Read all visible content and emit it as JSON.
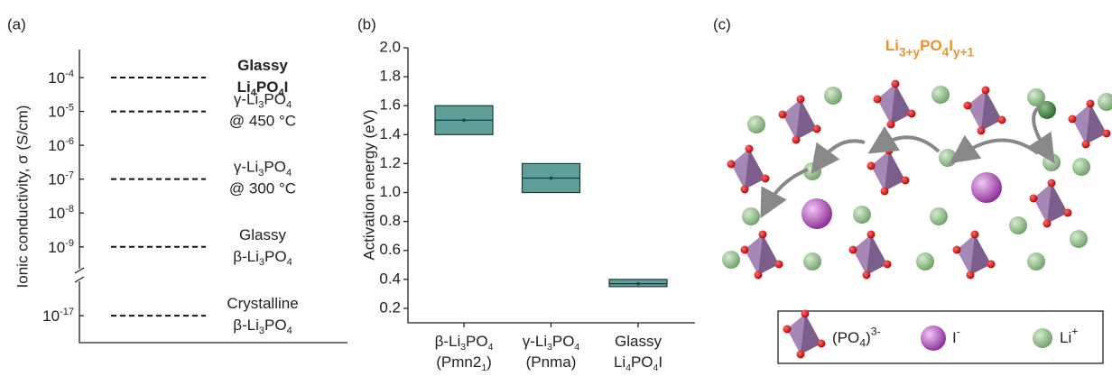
{
  "chart_data": [
    {
      "type": "levels",
      "panel_label": "(a)",
      "y_label": "Ionic conductivity, σ (S/cm)",
      "log_scale": true,
      "ylim": [
        1.8e-18,
        0.00067
      ],
      "axis_break": [
        1e-16,
        2e-10
      ],
      "yticks": [
        {
          "value": 0.0001,
          "label": "10-4"
        },
        {
          "value": 1e-05,
          "label": "10-5"
        },
        {
          "value": 1e-06,
          "label": "10-6"
        },
        {
          "value": 1e-07,
          "label": "10-7"
        },
        {
          "value": 1e-08,
          "label": "10-8"
        },
        {
          "value": 1e-09,
          "label": "10-9"
        },
        {
          "value": 1e-17,
          "label": "10-17"
        }
      ],
      "levels": [
        {
          "value": 0.0001,
          "bold": true,
          "label": [
            [
              "Glassy"
            ],
            [
              "Li",
              {
                "sub": "4"
              },
              "PO",
              {
                "sub": "4"
              },
              "I"
            ]
          ]
        },
        {
          "value": 1e-05,
          "label": [
            [
              "γ-Li",
              {
                "sub": "3"
              },
              "PO",
              {
                "sub": "4"
              }
            ],
            [
              "@ 450 °C"
            ]
          ]
        },
        {
          "value": 1e-07,
          "label": [
            [
              "γ-Li",
              {
                "sub": "3"
              },
              "PO",
              {
                "sub": "4"
              }
            ],
            [
              "@ 300 °C"
            ]
          ]
        },
        {
          "value": 1e-09,
          "label": [
            [
              "Glassy"
            ],
            [
              "β-Li",
              {
                "sub": "3"
              },
              "PO",
              {
                "sub": "4"
              }
            ]
          ]
        },
        {
          "value": 1e-17,
          "label": [
            [
              "Crystalline"
            ],
            [
              "β-Li",
              {
                "sub": "3"
              },
              "PO",
              {
                "sub": "4"
              }
            ]
          ]
        }
      ]
    },
    {
      "type": "box",
      "panel_label": "(b)",
      "y_label": "Activation energy (eV)",
      "color": "#5f9f9a",
      "ylim": [
        0.1,
        2.0
      ],
      "yticks": [
        {
          "value": 0.2,
          "label": "0.2"
        },
        {
          "value": 0.4,
          "label": "0.4"
        },
        {
          "value": 0.6,
          "label": "0.6"
        },
        {
          "value": 0.8,
          "label": "0.8"
        },
        {
          "value": 1.0,
          "label": "1.0"
        },
        {
          "value": 1.2,
          "label": "1.2"
        },
        {
          "value": 1.4,
          "label": "1.4"
        },
        {
          "value": 1.6,
          "label": "1.6"
        },
        {
          "value": 1.8,
          "label": "1.8"
        },
        {
          "value": 2.0,
          "label": "2.0"
        }
      ],
      "categories": [
        [
          [
            "β-Li",
            {
              "sub": "3"
            },
            "PO",
            {
              "sub": "4"
            }
          ],
          [
            "(Pmn2",
            {
              "sub": "1"
            },
            ")"
          ]
        ],
        [
          [
            "γ-Li",
            {
              "sub": "3"
            },
            "PO",
            {
              "sub": "4"
            }
          ],
          [
            "(Pnma)"
          ]
        ],
        [
          [
            "Glassy"
          ],
          [
            "Li",
            {
              "sub": "4"
            },
            "PO",
            {
              "sub": "4"
            },
            "I"
          ]
        ]
      ],
      "boxes": [
        {
          "q1": 1.4,
          "median": 1.5,
          "q3": 1.6,
          "mean": 1.5
        },
        {
          "q1": 1.0,
          "median": 1.1,
          "q3": 1.2,
          "mean": 1.1
        },
        {
          "q1": 0.35,
          "median": 0.37,
          "q3": 0.4,
          "mean": 0.37
        }
      ]
    }
  ],
  "diagram": {
    "panel_label": "(c)",
    "title": [
      "Li",
      {
        "sub": "3+y"
      },
      "PO",
      {
        "sub": "4"
      },
      "I",
      {
        "sub": "y+1"
      }
    ],
    "legend": [
      [
        "(PO",
        {
          "sub": "4"
        },
        ")",
        {
          "sup": "3-"
        }
      ],
      [
        "I",
        {
          "sup": "-"
        }
      ],
      [
        "Li",
        {
          "sup": "+"
        }
      ]
    ]
  }
}
